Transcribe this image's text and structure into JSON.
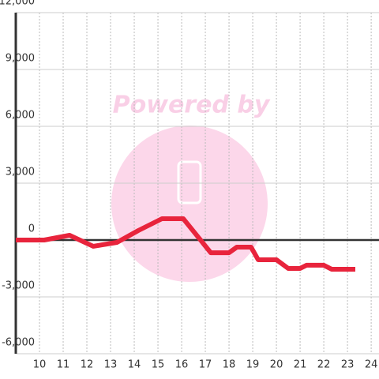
{
  "chart_data": {
    "type": "line",
    "watermark": "Powered by",
    "x": [
      9,
      10.2,
      11.27,
      12.27,
      13.27,
      14.17,
      15.17,
      16.07,
      17.23,
      18,
      18.33,
      18.93,
      19.23,
      20,
      20.5,
      21,
      21.27,
      22,
      22.33,
      23.33
    ],
    "series": [
      {
        "color": "#e8243c",
        "values": [
          0,
          0,
          250,
          -330,
          -125,
          500,
          1125,
          1125,
          -670,
          -670,
          -375,
          -375,
          -1040,
          -1040,
          -1500,
          -1500,
          -1330,
          -1330,
          -1540,
          -1540
        ]
      }
    ],
    "xlim": [
      9,
      24.33
    ],
    "xticks": [
      10,
      11,
      12,
      13,
      14,
      15,
      16,
      17,
      18,
      19,
      20,
      21,
      22,
      23,
      24
    ],
    "ylim": [
      -6000,
      12000
    ],
    "yticks": [
      {
        "value": -6000,
        "label": "-6,000"
      },
      {
        "value": -3000,
        "label": "-3,000"
      },
      0,
      {
        "value": 3000,
        "label": "3,000"
      },
      {
        "value": 6000,
        "label": "6,000"
      },
      {
        "value": 9000,
        "label": "9,000"
      },
      {
        "value": 12000,
        "label": "12,000"
      }
    ],
    "grid": true
  }
}
